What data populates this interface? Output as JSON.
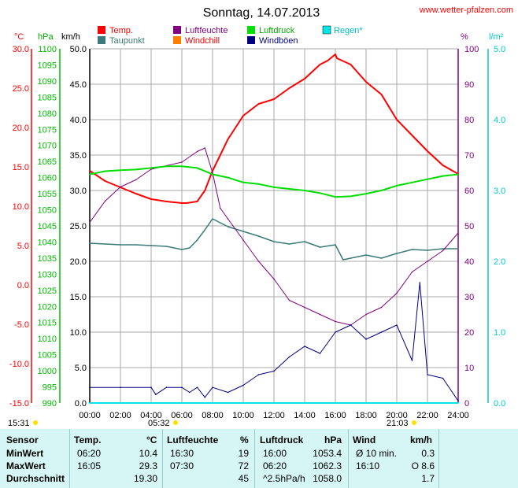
{
  "header": {
    "title": "Sonntag, 14.07.2013",
    "site": "www.wetter-pfalzen.com"
  },
  "legend": [
    {
      "label": "Temp.",
      "color": "#ff0000"
    },
    {
      "label": "Taupunkt",
      "color": "#3a7a78"
    },
    {
      "label": "Luftfeuchte",
      "color": "#800080"
    },
    {
      "label": "Windchill",
      "color": "#ff8000"
    },
    {
      "label": "Luftdruck",
      "color": "#00dd00"
    },
    {
      "label": "Windböen",
      "color": "#000080"
    },
    {
      "label": "Regen*",
      "color": "#00e5e5"
    }
  ],
  "axis_units": {
    "temp": "°C",
    "press": "hPa",
    "wind": "km/h",
    "hum": "%",
    "rain": "l/m²"
  },
  "axis_colors": {
    "temp": "#ff0000",
    "press": "#00bb00",
    "wind": "#000000",
    "hum": "#800080",
    "rain": "#00cccc"
  },
  "sun": {
    "sunrise": "05:32",
    "sunset": "21:03",
    "left_time": "15:31"
  },
  "chart_data": {
    "type": "line",
    "title": "Sonntag, 14.07.2013",
    "x_ticks": [
      "00:00",
      "02:00",
      "04:00",
      "06:00",
      "08:00",
      "10:00",
      "12:00",
      "14:00",
      "16:00",
      "18:00",
      "20:00",
      "22:00",
      "24:00"
    ],
    "xlim": [
      0,
      24
    ],
    "axes": {
      "temp": {
        "ylim": [
          -15,
          30
        ],
        "ticks": [
          "30.0",
          "25.0",
          "20.0",
          "15.0",
          "10.0",
          "5.0",
          "0.0",
          "-5.0",
          "-10.0",
          "-15.0"
        ]
      },
      "press": {
        "ylim": [
          990,
          1100
        ],
        "ticks": [
          "1100",
          "1095",
          "1090",
          "1085",
          "1080",
          "1075",
          "1070",
          "1065",
          "1060",
          "1055",
          "1050",
          "1045",
          "1040",
          "1035",
          "1030",
          "1025",
          "1020",
          "1015",
          "1010",
          "1005",
          "1000",
          "995",
          "990"
        ]
      },
      "wind": {
        "ylim": [
          0,
          50
        ],
        "ticks": [
          "50.0",
          "45.0",
          "40.0",
          "35.0",
          "30.0",
          "25.0",
          "20.0",
          "15.0",
          "10.0",
          "5.0",
          "0.0"
        ]
      },
      "hum": {
        "ylim": [
          0,
          100
        ],
        "ticks": [
          "100",
          "90",
          "80",
          "70",
          "60",
          "50",
          "40",
          "30",
          "20",
          "10",
          "0"
        ]
      },
      "rain": {
        "ylim": [
          0,
          5
        ],
        "ticks": [
          "5.0",
          "4.0",
          "3.0",
          "2.0",
          "1.0",
          "0.0"
        ]
      }
    },
    "grid": true,
    "series": [
      {
        "name": "Temp.",
        "axis": "temp",
        "color": "#ff0000",
        "x": [
          0,
          1,
          2,
          3,
          4,
          5,
          5.5,
          6,
          6.3,
          7,
          7.5,
          8,
          8.5,
          9,
          10,
          11,
          12,
          13,
          14,
          15,
          15.5,
          16,
          16.1,
          17,
          18,
          19,
          20,
          21,
          22,
          23,
          24
        ],
        "y": [
          14.5,
          13.2,
          12.4,
          11.6,
          10.9,
          10.6,
          10.5,
          10.4,
          10.4,
          10.6,
          12,
          14.5,
          16.5,
          18.5,
          21.5,
          23,
          23.6,
          25,
          26.2,
          28,
          28.5,
          29.3,
          28.8,
          28,
          25.8,
          24.2,
          21,
          19,
          17,
          15.2,
          14.1
        ]
      },
      {
        "name": "Taupunkt",
        "axis": "temp",
        "color": "#3a7a78",
        "x": [
          0,
          1,
          2,
          3,
          4,
          5,
          6,
          6.5,
          7,
          7.5,
          8,
          9,
          10,
          11,
          12,
          13,
          14,
          15,
          16,
          16.5,
          17,
          18,
          19,
          20,
          21,
          22,
          23,
          24
        ],
        "y": [
          5.3,
          5.2,
          5.1,
          5.1,
          5.0,
          4.9,
          4.5,
          4.7,
          5.7,
          7,
          8.4,
          7.4,
          6.8,
          6.2,
          5.5,
          5.2,
          5.5,
          4.8,
          5.1,
          3.2,
          3.4,
          3.8,
          3.4,
          4,
          4.5,
          4.4,
          4.6,
          4.6
        ]
      },
      {
        "name": "Luftfeuchte",
        "axis": "hum",
        "color": "#800080",
        "x": [
          0,
          1,
          2,
          3,
          4,
          5,
          6,
          7,
          7.5,
          8,
          8.5,
          9,
          10,
          11,
          12,
          13,
          14,
          15,
          16,
          17,
          18,
          19,
          20,
          21,
          22,
          23,
          24
        ],
        "y": [
          51,
          57,
          61,
          63,
          66,
          67,
          68,
          71,
          72,
          65,
          55,
          52,
          46,
          40,
          35,
          29,
          27,
          25,
          23,
          22,
          25,
          27,
          31,
          37,
          40,
          43,
          48
        ]
      },
      {
        "name": "Luftdruck",
        "axis": "press",
        "color": "#00dd00",
        "x": [
          0,
          1,
          2,
          3,
          4,
          5,
          6,
          7,
          8,
          9,
          10,
          11,
          12,
          13,
          14,
          15,
          16,
          17,
          18,
          19,
          20,
          21,
          22,
          23,
          24
        ],
        "y": [
          1061,
          1062,
          1062.3,
          1062.5,
          1063,
          1063.5,
          1063.5,
          1063,
          1061,
          1060,
          1058.5,
          1058,
          1057,
          1056.5,
          1056,
          1055.2,
          1054,
          1054.2,
          1055,
          1056,
          1057.5,
          1058.5,
          1059.5,
          1060.5,
          1061
        ]
      },
      {
        "name": "Windböen",
        "axis": "wind",
        "color": "#000080",
        "x": [
          0,
          2,
          4,
          4.3,
          5,
          6,
          6.5,
          7,
          7.5,
          8,
          9,
          10,
          11,
          12,
          13,
          14,
          15,
          16,
          17,
          18,
          19,
          20,
          21,
          21.5,
          22,
          23,
          24
        ],
        "y": [
          2.2,
          2.2,
          2.2,
          1.2,
          2.2,
          2.2,
          1.5,
          2.2,
          0.8,
          2.2,
          1.5,
          2.5,
          4,
          4.5,
          6.5,
          8,
          7,
          10,
          11,
          9,
          10,
          11,
          6,
          17,
          4,
          3.5,
          0.3
        ]
      },
      {
        "name": "Regen*",
        "axis": "rain",
        "color": "#00e5e5",
        "x": [
          0,
          24
        ],
        "y": [
          0,
          0
        ]
      }
    ]
  },
  "table": {
    "headers": {
      "sensor": "Sensor",
      "temp": "Temp.",
      "temp_unit": "°C",
      "hum": "Luftfeuchte",
      "hum_unit": "%",
      "press": "Luftdruck",
      "press_unit": "hPa",
      "wind": "Wind",
      "wind_unit": "km/h"
    },
    "rows": [
      {
        "label": "MinWert",
        "temp_time": "06:20",
        "temp_val": "10.4",
        "hum_time": "16:30",
        "hum_val": "19",
        "press_time": "16:00",
        "press_val": "1053.4",
        "wind_time": "Ø 10 min.",
        "wind_val": "0.3"
      },
      {
        "label": "MaxWert",
        "temp_time": "16:05",
        "temp_val": "29.3",
        "hum_time": "07:30",
        "hum_val": "72",
        "press_time": "06:20",
        "press_val": "1062.3",
        "wind_time": "16:10",
        "wind_val": "O 8.6"
      },
      {
        "label": "Durchschnitt",
        "temp_time": "",
        "temp_val": "19.30",
        "hum_time": "",
        "hum_val": "45",
        "press_time": "^2.5hPa/h",
        "press_val": "1058.0",
        "wind_time": "",
        "wind_val": "1.7"
      }
    ]
  }
}
